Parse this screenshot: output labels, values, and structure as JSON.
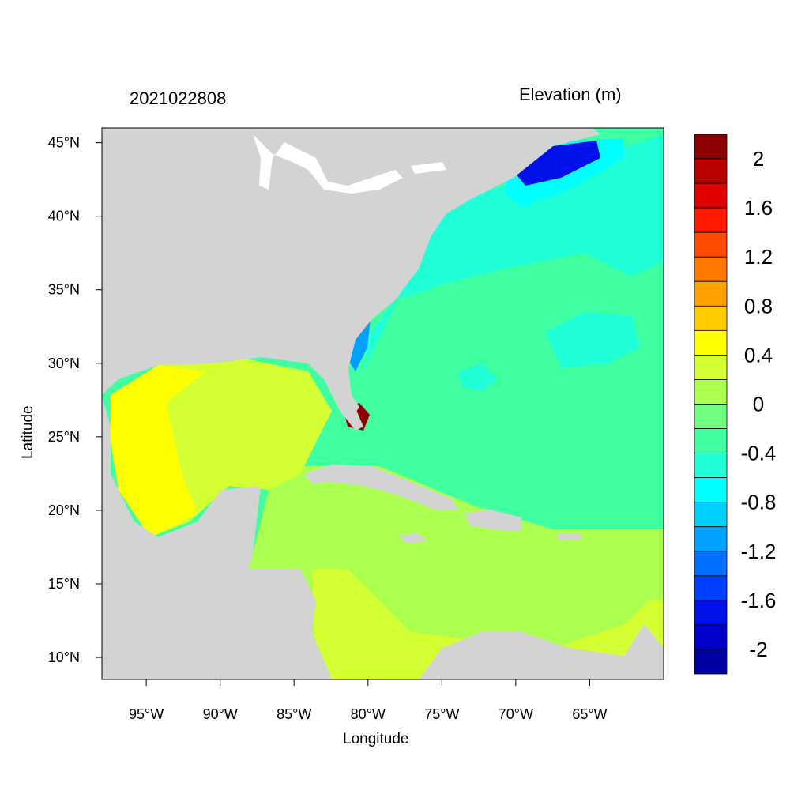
{
  "header": {
    "date_label": "2021022808",
    "variable_label": "Elevation (m)"
  },
  "axes": {
    "xlabel": "Longitude",
    "ylabel": "Latitude",
    "x_ticks": [
      "95°W",
      "90°W",
      "85°W",
      "80°W",
      "75°W",
      "70°W",
      "65°W"
    ],
    "x_tick_values": [
      -95,
      -90,
      -85,
      -80,
      -75,
      -70,
      -65
    ],
    "y_ticks": [
      "10°N",
      "15°N",
      "20°N",
      "25°N",
      "30°N",
      "35°N",
      "40°N",
      "45°N"
    ],
    "y_tick_values": [
      10,
      15,
      20,
      25,
      30,
      35,
      40,
      45
    ],
    "lon_range": [
      -98,
      -60
    ],
    "lat_range": [
      8.5,
      46
    ]
  },
  "colorbar": {
    "labels": [
      "2",
      "1.6",
      "1.2",
      "0.8",
      "0.4",
      "0",
      "-0.4",
      "-0.8",
      "-1.2",
      "-1.6",
      "-2"
    ],
    "colors": [
      "#8b0000",
      "#b80000",
      "#e00000",
      "#ff1a00",
      "#ff4800",
      "#ff7800",
      "#ffa000",
      "#ffcc00",
      "#ffff00",
      "#d4ff32",
      "#aaff50",
      "#70ff80",
      "#40ffa0",
      "#20ffd8",
      "#00ffff",
      "#00d0ff",
      "#00a0ff",
      "#0070ff",
      "#0040ff",
      "#0010e8",
      "#0000c8",
      "#0000a0"
    ]
  },
  "map_colors": {
    "land": "#d3d3d3",
    "ocean_atlantic": "#40ffa0",
    "caribbean": "#aaff50",
    "gulf": "#ffff00"
  }
}
